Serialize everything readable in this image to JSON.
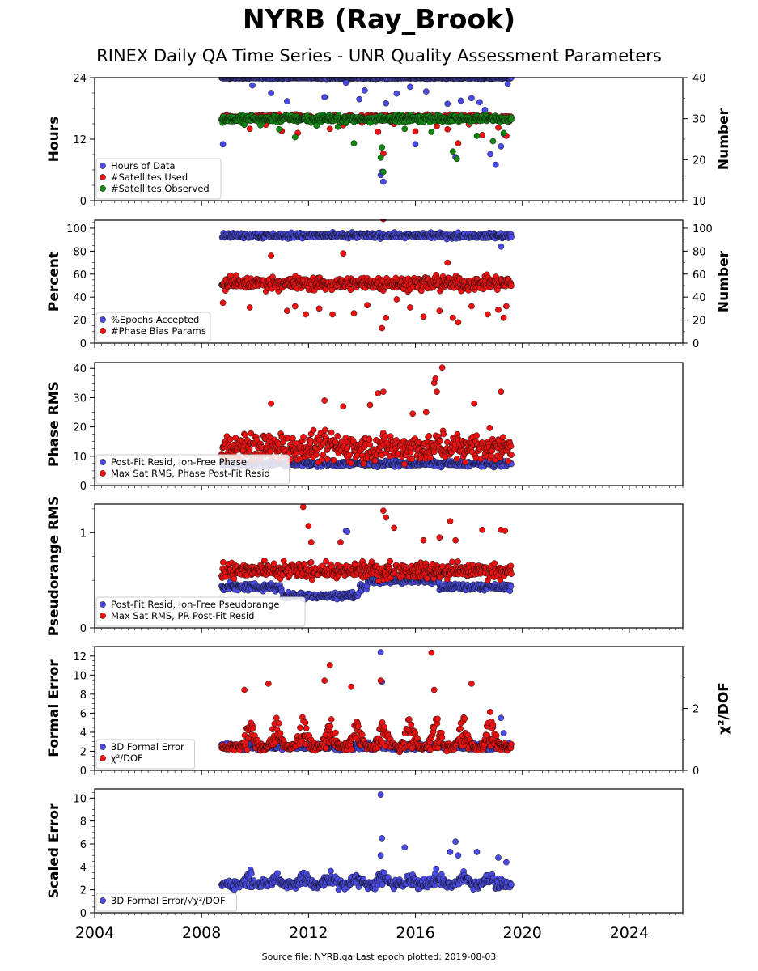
{
  "title": "NYRB (Ray_Brook)",
  "subtitle": "RINEX Daily QA Time Series - UNR Quality Assessment Parameters",
  "footer": "Source file: NYRB.qa Last epoch plotted: 2019-08-03",
  "colors": {
    "blue": "#4a4ae6",
    "red": "#ee1111",
    "green": "#118811",
    "edge": "#111111"
  },
  "chart_data": [
    {
      "type": "scatter",
      "name": "hours-satellites",
      "ylabel": "Hours",
      "ylabel_right": "Number",
      "ylim": [
        0,
        24
      ],
      "yticks": [
        0,
        12,
        24
      ],
      "ylim_right": [
        10,
        40
      ],
      "yticks_right": [
        10,
        20,
        30,
        40
      ],
      "xlim": [
        2004,
        2026
      ],
      "xticks": [
        2004,
        2008,
        2012,
        2016,
        2020,
        2024
      ],
      "legend": "lower-left",
      "series": [
        {
          "name": "Hours of Data",
          "axis": "left",
          "color": "blue",
          "base": 23.9,
          "spread": 0.1,
          "outliers": [
            [
              2008.8,
              11.0
            ],
            [
              2009.9,
              22.5
            ],
            [
              2010.6,
              21.0
            ],
            [
              2011.2,
              19.4
            ],
            [
              2012.6,
              20.2
            ],
            [
              2013.4,
              23.0
            ],
            [
              2013.9,
              19.8
            ],
            [
              2014.1,
              21.5
            ],
            [
              2014.7,
              5.0
            ],
            [
              2014.75,
              5.6
            ],
            [
              2014.8,
              3.7
            ],
            [
              2014.9,
              19.0
            ],
            [
              2015.3,
              20.9
            ],
            [
              2015.8,
              22.2
            ],
            [
              2016.0,
              11.0
            ],
            [
              2016.4,
              21.3
            ],
            [
              2017.2,
              18.9
            ],
            [
              2017.3,
              16.3
            ],
            [
              2017.5,
              8.5
            ],
            [
              2017.7,
              19.5
            ],
            [
              2018.1,
              20.0
            ],
            [
              2018.4,
              19.2
            ],
            [
              2018.6,
              17.7
            ],
            [
              2018.8,
              9.1
            ],
            [
              2019.0,
              7.0
            ],
            [
              2019.2,
              10.6
            ],
            [
              2019.3,
              13.0
            ],
            [
              2019.45,
              22.8
            ]
          ]
        },
        {
          "name": "#Satellites Used",
          "axis": "right",
          "color": "red",
          "base": 30.2,
          "spread": 0.6,
          "outliers": [
            [
              2009.8,
              27.5
            ],
            [
              2010.4,
              28.5
            ],
            [
              2011.0,
              27.0
            ],
            [
              2011.6,
              26.5
            ],
            [
              2012.1,
              29.0
            ],
            [
              2012.8,
              27.5
            ],
            [
              2013.3,
              28.4
            ],
            [
              2014.0,
              29.0
            ],
            [
              2014.6,
              26.8
            ],
            [
              2014.8,
              21.5
            ],
            [
              2015.2,
              28.7
            ],
            [
              2016.0,
              26.9
            ],
            [
              2016.8,
              28.2
            ],
            [
              2017.2,
              27.4
            ],
            [
              2017.6,
              24.0
            ],
            [
              2018.0,
              28.6
            ],
            [
              2018.5,
              26.0
            ],
            [
              2019.1,
              27.8
            ],
            [
              2019.4,
              25.8
            ]
          ]
        },
        {
          "name": "#Satellites Observed",
          "axis": "right",
          "color": "green",
          "base": 30.0,
          "spread": 0.7,
          "outliers": [
            [
              2009.6,
              28.5
            ],
            [
              2010.2,
              28.4
            ],
            [
              2010.9,
              27.4
            ],
            [
              2011.5,
              25.5
            ],
            [
              2012.3,
              28.3
            ],
            [
              2013.1,
              28.0
            ],
            [
              2013.7,
              24.0
            ],
            [
              2014.3,
              29.0
            ],
            [
              2014.8,
              17.0
            ],
            [
              2014.7,
              20.5
            ],
            [
              2014.75,
              23.0
            ],
            [
              2015.6,
              27.5
            ],
            [
              2016.6,
              26.8
            ],
            [
              2017.4,
              22.0
            ],
            [
              2017.55,
              20.2
            ],
            [
              2018.3,
              25.8
            ],
            [
              2018.9,
              24.5
            ],
            [
              2019.3,
              26.5
            ]
          ]
        }
      ]
    },
    {
      "type": "scatter",
      "name": "percent",
      "ylabel": "Percent",
      "ylabel_right": "Number",
      "ylim": [
        0,
        107
      ],
      "yticks": [
        0,
        20,
        40,
        60,
        80,
        100
      ],
      "ylim_right": [
        0,
        107
      ],
      "yticks_right": [
        0,
        20,
        40,
        60,
        80,
        100
      ],
      "xlim": [
        2004,
        2026
      ],
      "xticks": [
        2004,
        2008,
        2012,
        2016,
        2020,
        2024
      ],
      "legend": "lower-left",
      "series": [
        {
          "name": "%Epochs Accepted",
          "axis": "left",
          "color": "blue",
          "base": 93.5,
          "spread": 2.0,
          "outliers": [
            [
              2019.2,
              84.0
            ]
          ]
        },
        {
          "name": "#Phase Bias Params",
          "axis": "right",
          "color": "red",
          "base": 52.0,
          "spread": 5.0,
          "outliers": [
            [
              2008.8,
              35.0
            ],
            [
              2009.8,
              31.0
            ],
            [
              2010.6,
              76.0
            ],
            [
              2011.2,
              28.0
            ],
            [
              2011.5,
              32.0
            ],
            [
              2011.9,
              25.0
            ],
            [
              2012.4,
              30.0
            ],
            [
              2012.9,
              25.0
            ],
            [
              2013.3,
              78.0
            ],
            [
              2013.7,
              26.0
            ],
            [
              2014.2,
              33.0
            ],
            [
              2014.75,
              13.0
            ],
            [
              2014.8,
              108.0
            ],
            [
              2014.9,
              22.0
            ],
            [
              2015.3,
              38.0
            ],
            [
              2015.8,
              31.0
            ],
            [
              2016.3,
              23.0
            ],
            [
              2016.9,
              28.0
            ],
            [
              2017.2,
              70.0
            ],
            [
              2017.4,
              22.0
            ],
            [
              2017.6,
              18.0
            ],
            [
              2018.1,
              32.0
            ],
            [
              2018.7,
              25.0
            ],
            [
              2019.1,
              29.0
            ],
            [
              2019.3,
              22.0
            ],
            [
              2019.4,
              32.0
            ]
          ]
        }
      ]
    },
    {
      "type": "scatter",
      "name": "phase-rms",
      "ylabel": "Phase RMS",
      "ylim": [
        0,
        42
      ],
      "yticks": [
        0,
        10,
        20,
        30,
        40
      ],
      "xlim": [
        2004,
        2026
      ],
      "xticks": [
        2004,
        2008,
        2012,
        2016,
        2020,
        2024
      ],
      "legend": "lower-left",
      "series": [
        {
          "name": "Post-Fit Resid, Ion-Free Phase",
          "color": "blue",
          "base": 7.5,
          "spread": 0.8,
          "outliers": []
        },
        {
          "name": "Max Sat RMS, Phase Post-Fit Resid",
          "color": "red",
          "base": 13.0,
          "spread": 4.0,
          "outliers": [
            [
              2010.6,
              28.0
            ],
            [
              2012.6,
              29.0
            ],
            [
              2013.3,
              27.0
            ],
            [
              2014.3,
              27.5
            ],
            [
              2014.6,
              31.5
            ],
            [
              2014.8,
              32.0
            ],
            [
              2015.9,
              24.5
            ],
            [
              2016.4,
              25.0
            ],
            [
              2016.7,
              35.0
            ],
            [
              2016.75,
              36.5
            ],
            [
              2016.8,
              32.0
            ],
            [
              2017.0,
              40.3
            ],
            [
              2018.2,
              28.0
            ],
            [
              2019.2,
              32.0
            ]
          ]
        }
      ]
    },
    {
      "type": "scatter",
      "name": "pseudorange-rms",
      "ylabel": "Pseudorange RMS",
      "ylim": [
        0,
        1.3
      ],
      "yticks": [
        0,
        1
      ],
      "xlim": [
        2004,
        2026
      ],
      "xticks": [
        2004,
        2008,
        2012,
        2016,
        2020,
        2024
      ],
      "legend": "lower-left",
      "series": [
        {
          "name": "Post-Fit Resid, Ion-Free Pseudorange",
          "color": "blue",
          "base": 0.43,
          "spread": 0.03,
          "steps": [
            [
              2011.0,
              2013.9,
              0.34
            ],
            [
              2014.2,
              2016.9,
              0.5
            ]
          ],
          "outliers": [
            [
              2013.4,
              1.02
            ],
            [
              2013.45,
              1.01
            ]
          ]
        },
        {
          "name": "Max Sat RMS, PR Post-Fit Resid",
          "color": "red",
          "base": 0.6,
          "spread": 0.07,
          "outliers": [
            [
              2011.8,
              1.27
            ],
            [
              2012.0,
              1.07
            ],
            [
              2012.1,
              0.9
            ],
            [
              2013.2,
              0.9
            ],
            [
              2014.8,
              1.23
            ],
            [
              2014.9,
              1.16
            ],
            [
              2015.2,
              1.05
            ],
            [
              2016.3,
              0.92
            ],
            [
              2016.9,
              0.95
            ],
            [
              2017.3,
              1.12
            ],
            [
              2017.5,
              0.92
            ],
            [
              2018.5,
              1.03
            ],
            [
              2019.2,
              1.03
            ],
            [
              2019.35,
              1.02
            ]
          ]
        }
      ]
    },
    {
      "type": "scatter",
      "name": "formal-error",
      "ylabel": "Formal Error",
      "ylabel_right": "χ²/DOF",
      "ylim": [
        0,
        13
      ],
      "yticks": [
        0,
        2,
        4,
        6,
        8,
        10,
        12
      ],
      "ylim_right": [
        0,
        4
      ],
      "yticks_right": [
        0,
        2
      ],
      "xlim": [
        2004,
        2026
      ],
      "xticks": [
        2004,
        2008,
        2012,
        2016,
        2020,
        2024
      ],
      "legend": "lower-left",
      "series": [
        {
          "name": "3D Formal Error",
          "axis": "left",
          "color": "blue",
          "base": 2.5,
          "spread": 0.3,
          "outliers": [
            [
              2014.7,
              12.4
            ],
            [
              2014.75,
              9.3
            ],
            [
              2018.9,
              4.5
            ],
            [
              2019.2,
              5.5
            ],
            [
              2019.3,
              3.9
            ]
          ]
        },
        {
          "name": "χ²/DOF",
          "axis": "right",
          "color": "red",
          "base": 0.75,
          "spread": 0.1,
          "peaks": [
            2009.8,
            2010.8,
            2011.8,
            2012.8,
            2013.8,
            2014.8,
            2015.8,
            2016.8,
            2017.8,
            2018.8
          ],
          "outliers": [
            [
              2009.6,
              2.6
            ],
            [
              2010.5,
              2.8
            ],
            [
              2012.6,
              2.9
            ],
            [
              2012.8,
              3.4
            ],
            [
              2013.6,
              2.7
            ],
            [
              2014.7,
              2.9
            ],
            [
              2016.6,
              3.8
            ],
            [
              2016.7,
              2.6
            ],
            [
              2018.1,
              2.8
            ]
          ]
        }
      ]
    },
    {
      "type": "scatter",
      "name": "scaled-error",
      "ylabel": "Scaled Error",
      "ylim": [
        0,
        10.8
      ],
      "yticks": [
        0,
        2,
        4,
        6,
        8,
        10
      ],
      "xlim": [
        2004,
        2026
      ],
      "xticks": [
        2004,
        2008,
        2012,
        2016,
        2020,
        2024
      ],
      "legend": "lower-left",
      "series": [
        {
          "name": "3D Formal Error/√χ²/DOF",
          "color": "blue",
          "base": 2.5,
          "spread": 0.35,
          "peaks": [
            2009.8,
            2010.8,
            2011.8,
            2012.8,
            2013.8,
            2014.8,
            2015.8,
            2016.8,
            2017.8,
            2018.8
          ],
          "outliers": [
            [
              2014.7,
              10.3
            ],
            [
              2014.75,
              6.5
            ],
            [
              2014.7,
              5.0
            ],
            [
              2015.6,
              5.7
            ],
            [
              2017.3,
              5.3
            ],
            [
              2017.5,
              6.2
            ],
            [
              2017.6,
              5.0
            ],
            [
              2018.3,
              5.3
            ],
            [
              2019.1,
              4.8
            ],
            [
              2019.4,
              4.4
            ]
          ]
        }
      ]
    }
  ],
  "series_span": [
    2008.75,
    2019.6
  ]
}
